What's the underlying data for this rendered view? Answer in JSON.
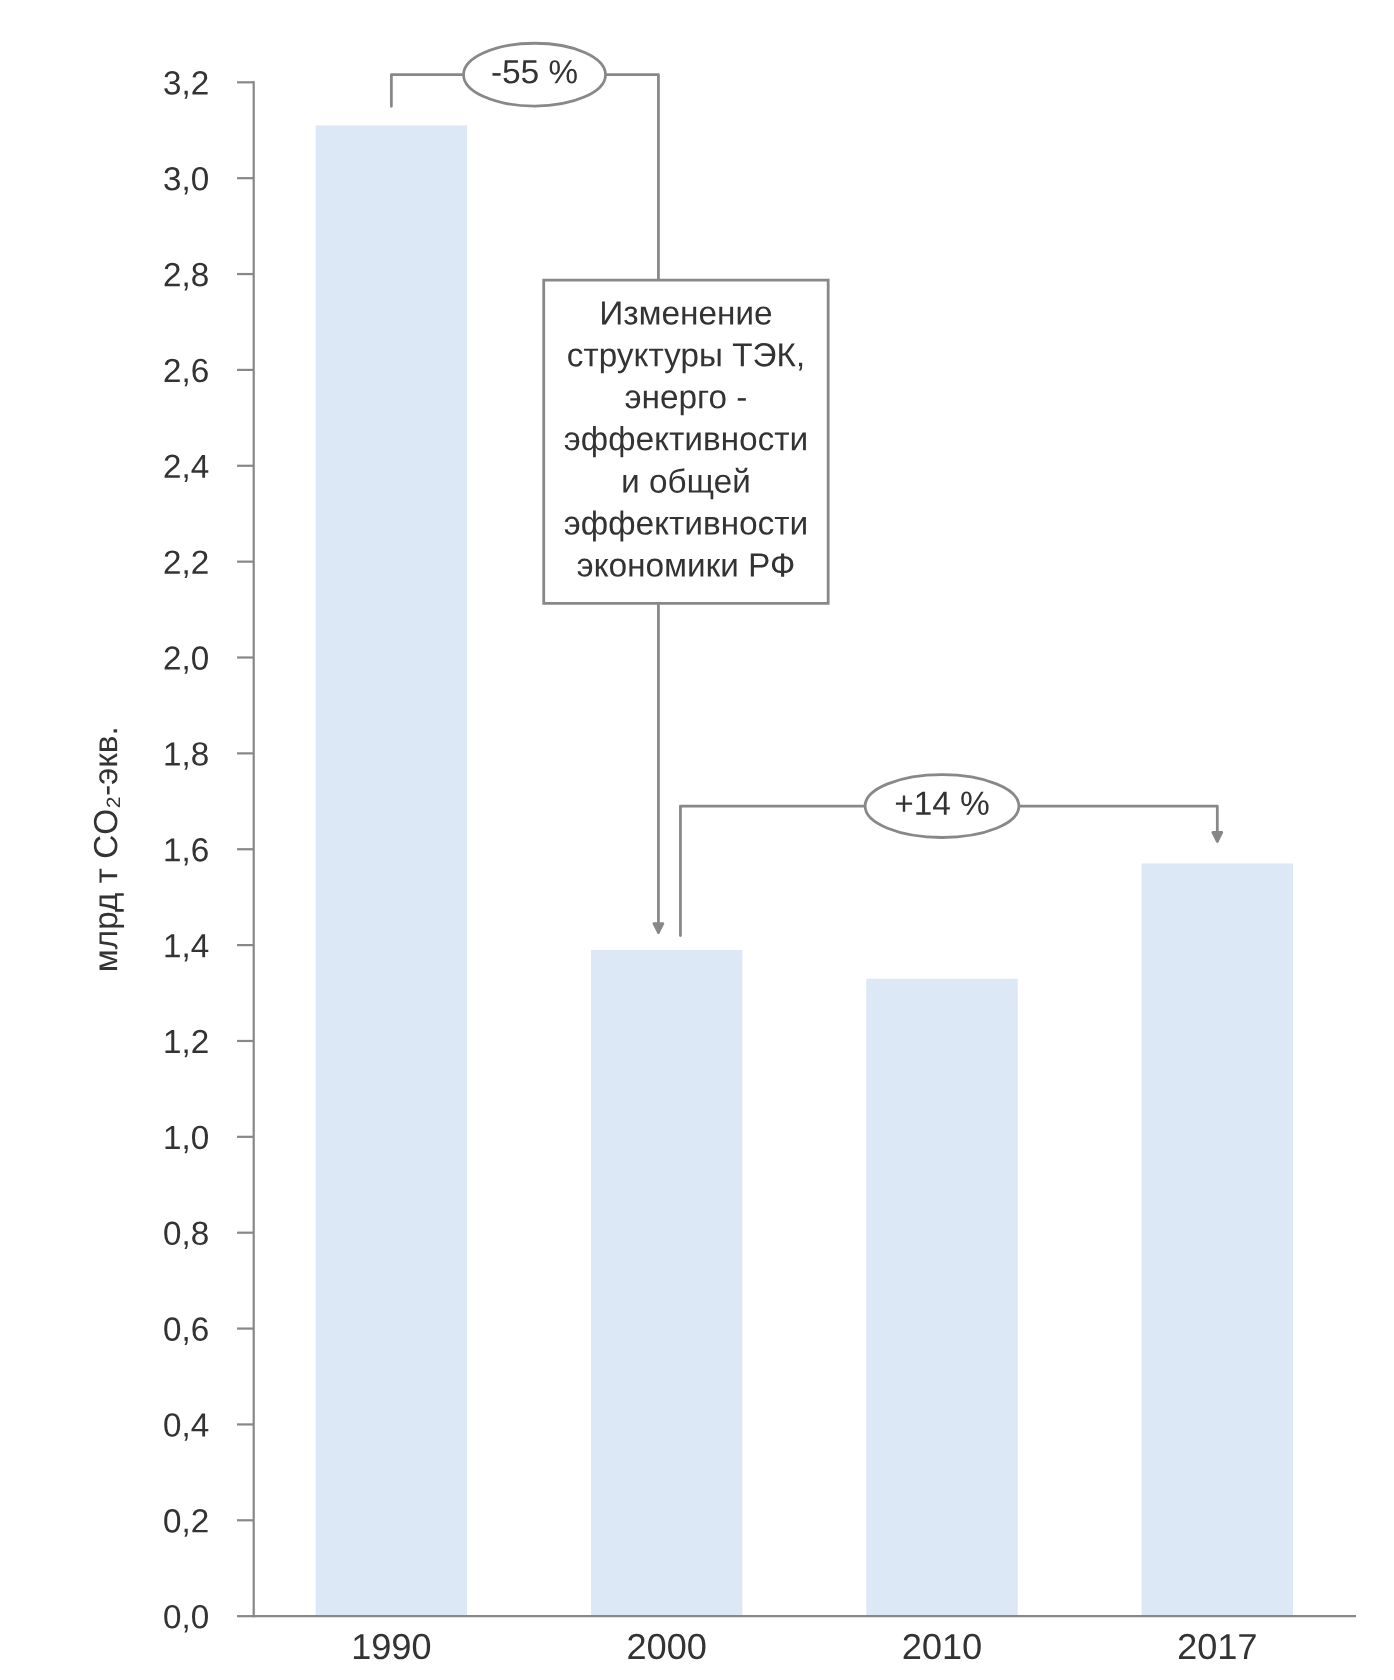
{
  "chart_data": {
    "type": "bar",
    "ylabel": "млрд т CO₂-экв.",
    "categories": [
      "1990",
      "2000",
      "2010",
      "2017"
    ],
    "values": [
      3.11,
      1.39,
      1.33,
      1.57
    ],
    "color": "#dce8f5",
    "ylim": [
      0,
      3.2
    ],
    "yticks": [
      {
        "value": 0,
        "label": "0,0"
      },
      {
        "value": 0.2,
        "label": "0,2"
      },
      {
        "value": 0.4,
        "label": "0,4"
      },
      {
        "value": 0.6,
        "label": "0,6"
      },
      {
        "value": 0.8,
        "label": "0,8"
      },
      {
        "value": 1.0,
        "label": "1,0"
      },
      {
        "value": 1.2,
        "label": "1,2"
      },
      {
        "value": 1.4,
        "label": "1,4"
      },
      {
        "value": 1.6,
        "label": "1,6"
      },
      {
        "value": 1.8,
        "label": "1,8"
      },
      {
        "value": 2.0,
        "label": "2,0"
      },
      {
        "value": 2.2,
        "label": "2,2"
      },
      {
        "value": 2.4,
        "label": "2,4"
      },
      {
        "value": 2.6,
        "label": "2,6"
      },
      {
        "value": 2.8,
        "label": "2,8"
      },
      {
        "value": 3.0,
        "label": "3,0"
      },
      {
        "value": 3.2,
        "label": "3,2"
      }
    ],
    "grid": false,
    "annotations": [
      "-55 %",
      "Изменение\nструктуры ТЭК,\nэнерго -\nэффективности\nи общей\nэффективности\nэкономики РФ",
      "+14 %"
    ]
  }
}
